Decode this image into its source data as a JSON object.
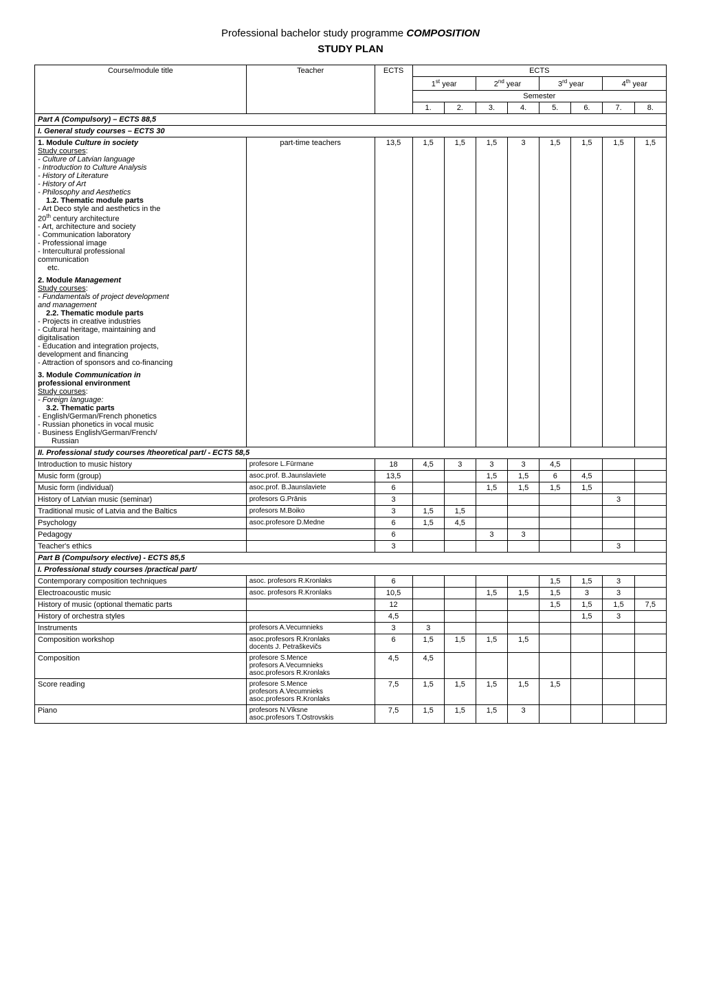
{
  "header": {
    "prefix": "Professional bachelor study programme ",
    "programme": "COMPOSITION",
    "subtitle": "STUDY PLAN"
  },
  "columns": {
    "course": "Course/module title",
    "teacher": "Teacher",
    "ects": "ECTS",
    "year1": "1",
    "year1_suffix": "st",
    "year1_tail": " year",
    "year2": "2",
    "year2_suffix": "nd",
    "year2_tail": " year",
    "year3": "3",
    "year3_suffix": "rd",
    "year3_tail": " year",
    "year4": "4",
    "year4_suffix": "th",
    "year4_tail": " year",
    "semester": "Semester",
    "s1": "1.",
    "s2": "2.",
    "s3": "3.",
    "s4": "4.",
    "s5": "5.",
    "s6": "6.",
    "s7": "7.",
    "s8": "8."
  },
  "partA": {
    "title": "Part A (Compulsory)  –  ECTS 88,5",
    "sec1": "I.  General study courses – ECTS 30",
    "module1": {
      "prefix": "1. Module ",
      "name": "Culture in society",
      "study_courses": "Study courses",
      "c1": "- Culture of Latvian language",
      "c2": "- Introduction to Culture Analysis",
      "c3": "- History of Literature",
      "c4": "- History of Art",
      "c5": "- Philosophy and Aesthetics",
      "thematic": "1.2. Thematic module parts",
      "t1a": "- Art Deco style and aesthetics in the",
      "t1b": "20",
      "t1b_sup": "th",
      "t1c": " century architecture",
      "t2": "- Art, architecture and society",
      "t3": "- Communication laboratory",
      "t4": "- Professional image",
      "t5a": "- Intercultural professional",
      "t5b": "communication",
      "etc": "etc."
    },
    "module2": {
      "prefix": "2. Module ",
      "name": "Management",
      "study_courses": "Study courses",
      "c1a": "- Fundamentals of project development",
      "c1b": "and management",
      "thematic": "2.2. Thematic module parts",
      "t1": "- Projects in creative industries",
      "t2a": "- Cultural heritage, maintaining and",
      "t2b": "digitalisation",
      "t3a": "- Education and integration projects,",
      "t3b": "development and financing",
      "t4": "- Attraction of sponsors and co-financing"
    },
    "module3": {
      "prefix": "3. Module ",
      "name1": "Communication in",
      "name2": "professional environment",
      "study_courses": "Study courses",
      "c1": "- Foreign language",
      "thematic": "3.2. Thematic parts",
      "t1": "- English/German/French phonetics",
      "t2": "- Russian phonetics in vocal music",
      "t3a": "- Business English/German/French/",
      "t3b": "Russian"
    },
    "module_teacher": "part-time teachers",
    "module_ects": "13,5",
    "module_sem": [
      "1,5",
      "1,5",
      "1,5",
      "3",
      "1,5",
      "1,5",
      "1,5",
      "1,5"
    ],
    "sec2": "II. Professional study courses /theoretical part/ - ECTS 58,5",
    "rows2": [
      {
        "course": "Introduction to music history",
        "teacher": "profesore L.Fūrmane",
        "ects": "18",
        "s": [
          "4,5",
          "3",
          "3",
          "3",
          "4,5",
          "",
          "",
          ""
        ]
      },
      {
        "course": "Music form (group)",
        "teacher": "asoc.prof. B.Jaunslaviete",
        "ects": "13,5",
        "s": [
          "",
          "",
          "1,5",
          "1,5",
          "6",
          "4,5",
          "",
          ""
        ]
      },
      {
        "course": "Music form (individual)",
        "teacher": "asoc.prof. B.Jaunslaviete",
        "ects": "6",
        "s": [
          "",
          "",
          "1,5",
          "1,5",
          "1,5",
          "1,5",
          "",
          ""
        ]
      },
      {
        "course": "History of Latvian music (seminar)",
        "teacher": "profesors G.Prānis",
        "ects": "3",
        "s": [
          "",
          "",
          "",
          "",
          "",
          "",
          "3",
          ""
        ]
      },
      {
        "course": "Traditional music of Latvia and the Baltics",
        "teacher": "profesors M.Boiko",
        "ects": "3",
        "s": [
          "1,5",
          "1,5",
          "",
          "",
          "",
          "",
          "",
          ""
        ]
      },
      {
        "course": "Psychology",
        "teacher": "asoc.profesore D.Medne",
        "ects": "6",
        "s": [
          "1,5",
          "4,5",
          "",
          "",
          "",
          "",
          "",
          ""
        ]
      },
      {
        "course": "Pedagogy",
        "teacher": "",
        "ects": "6",
        "s": [
          "",
          "",
          "3",
          "3",
          "",
          "",
          "",
          ""
        ]
      },
      {
        "course": "Teacher's ethics",
        "teacher": "",
        "ects": "3",
        "s": [
          "",
          "",
          "",
          "",
          "",
          "",
          "3",
          ""
        ]
      }
    ]
  },
  "partB": {
    "title": "Part B (Compulsory elective) - ECTS 85,5",
    "sec1": "I.  Professional study courses /practical part/",
    "rows": [
      {
        "course": "Contemporary composition techniques",
        "teacher": "asoc. profesors R.Kronlaks",
        "ects": "6",
        "s": [
          "",
          "",
          "",
          "",
          "1,5",
          "1,5",
          "3",
          ""
        ]
      },
      {
        "course": "Electroacoustic music",
        "teacher": "asoc. profesors R.Kronlaks",
        "ects": "10,5",
        "s": [
          "",
          "",
          "1,5",
          "1,5",
          "1,5",
          "3",
          "3",
          ""
        ]
      },
      {
        "course": "History of music (optional thematic parts",
        "teacher": "",
        "ects": "12",
        "s": [
          "",
          "",
          "",
          "",
          "1,5",
          "1,5",
          "1,5",
          "7,5"
        ]
      },
      {
        "course": "History of orchestra styles",
        "teacher": "",
        "ects": "4,5",
        "s": [
          "",
          "",
          "",
          "",
          "",
          "1,5",
          "3",
          ""
        ]
      },
      {
        "course": "Instruments",
        "teacher": "profesors A.Vecumnieks",
        "ects": "3",
        "s": [
          "3",
          "",
          "",
          "",
          "",
          "",
          "",
          ""
        ]
      },
      {
        "course": "Composition workshop",
        "teacher": "asoc.profesors R.Kronlaks\ndocents J. Petraškevičs",
        "ects": "6",
        "s": [
          "1,5",
          "1,5",
          "1,5",
          "1,5",
          "",
          "",
          "",
          ""
        ]
      },
      {
        "course": "Composition",
        "teacher": "profesore S.Mence\nprofesors A.Vecumnieks\nasoc.profesors R.Kronlaks",
        "ects": "4,5",
        "s": [
          "4,5",
          "",
          "",
          "",
          "",
          "",
          "",
          ""
        ]
      },
      {
        "course": "Score reading",
        "teacher": "profesore S.Mence\nprofesors A.Vecumnieks\nasoc.profesors R.Kronlaks",
        "ects": "7,5",
        "s": [
          "1,5",
          "1,5",
          "1,5",
          "1,5",
          "1,5",
          "",
          "",
          ""
        ]
      },
      {
        "course": "Piano",
        "teacher": "profesors N.Vīksne\nasoc.profesors T.Ostrovskis",
        "ects": "7,5",
        "s": [
          "1,5",
          "1,5",
          "1,5",
          "3",
          "",
          "",
          "",
          ""
        ]
      }
    ]
  }
}
